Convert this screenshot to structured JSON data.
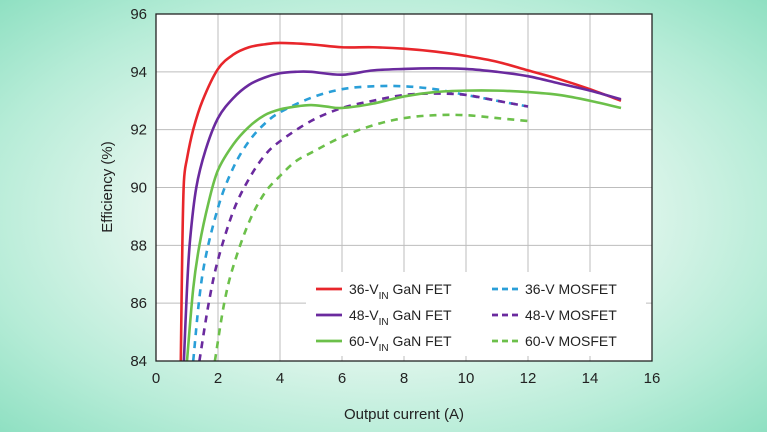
{
  "chart_data": {
    "type": "line",
    "xlabel": "Output current (A)",
    "ylabel": "Efficiency (%)",
    "xlim": [
      0,
      16
    ],
    "ylim": [
      84,
      96
    ],
    "xticks": [
      0,
      2,
      4,
      6,
      8,
      10,
      12,
      14,
      16
    ],
    "yticks": [
      84,
      86,
      88,
      90,
      92,
      94,
      96
    ],
    "grid": true,
    "legend_position": "bottom-right",
    "series": [
      {
        "name": "36-V IN GaN FET",
        "legend_main": "36-V",
        "legend_sub": "IN",
        "legend_rest": " GaN FET",
        "color": "#e8262b",
        "dash": "solid",
        "x": [
          0.8,
          0.85,
          0.9,
          1.0,
          1.2,
          1.5,
          2.0,
          2.5,
          3.0,
          3.5,
          4.0,
          5.0,
          6.0,
          7.0,
          8.0,
          9.0,
          10.0,
          11.0,
          12.0,
          13.0,
          14.0,
          15.0
        ],
        "y": [
          84.0,
          88.0,
          90.2,
          91.0,
          92.0,
          93.0,
          94.1,
          94.6,
          94.85,
          94.95,
          95.0,
          94.95,
          94.85,
          94.85,
          94.8,
          94.7,
          94.55,
          94.35,
          94.05,
          93.75,
          93.4,
          93.0
        ]
      },
      {
        "name": "48-V IN GaN FET",
        "legend_main": "48-V",
        "legend_sub": "IN",
        "legend_rest": " GaN FET",
        "color": "#6a2a9e",
        "dash": "solid",
        "x": [
          0.9,
          1.0,
          1.1,
          1.3,
          1.6,
          2.0,
          2.5,
          3.0,
          3.5,
          4.0,
          4.5,
          5.0,
          6.0,
          7.0,
          8.0,
          9.0,
          10.0,
          11.0,
          12.0,
          13.0,
          14.0,
          15.0
        ],
        "y": [
          84.0,
          86.5,
          88.2,
          90.0,
          91.3,
          92.4,
          93.1,
          93.55,
          93.8,
          93.95,
          94.0,
          94.0,
          93.9,
          94.05,
          94.1,
          94.12,
          94.1,
          94.0,
          93.85,
          93.6,
          93.35,
          93.05
        ]
      },
      {
        "name": "60-V IN GaN FET",
        "legend_main": "60-V",
        "legend_sub": "IN",
        "legend_rest": " GaN FET",
        "color": "#6cc04a",
        "dash": "solid",
        "x": [
          1.0,
          1.2,
          1.4,
          1.7,
          2.0,
          2.5,
          3.0,
          3.5,
          4.0,
          4.5,
          5.0,
          5.5,
          6.0,
          7.0,
          8.0,
          9.0,
          10.0,
          11.0,
          12.0,
          13.0,
          14.0,
          15.0
        ],
        "y": [
          84.0,
          86.5,
          88.0,
          89.5,
          90.6,
          91.5,
          92.1,
          92.5,
          92.7,
          92.8,
          92.85,
          92.8,
          92.75,
          92.9,
          93.15,
          93.3,
          93.35,
          93.35,
          93.3,
          93.2,
          93.0,
          92.75
        ]
      },
      {
        "name": "36-V MOSFET",
        "legend_main": "36-V MOSFET",
        "legend_sub": "",
        "legend_rest": "",
        "color": "#2a9fd8",
        "dash": "dashed",
        "x": [
          1.2,
          1.5,
          2.0,
          2.5,
          3.0,
          3.5,
          4.0,
          5.0,
          6.0,
          7.0,
          8.0,
          9.0,
          10.0,
          11.0,
          12.0
        ],
        "y": [
          84.0,
          87.0,
          89.3,
          90.7,
          91.6,
          92.2,
          92.6,
          93.1,
          93.4,
          93.5,
          93.5,
          93.4,
          93.2,
          93.0,
          92.8
        ]
      },
      {
        "name": "48-V MOSFET",
        "legend_main": "48-V MOSFET",
        "legend_sub": "",
        "legend_rest": "",
        "color": "#6a2a9e",
        "dash": "dashed",
        "x": [
          1.4,
          1.7,
          2.0,
          2.5,
          3.0,
          3.5,
          4.0,
          5.0,
          6.0,
          7.0,
          8.0,
          9.0,
          10.0,
          11.0,
          12.0
        ],
        "y": [
          84.0,
          86.0,
          87.5,
          89.2,
          90.3,
          91.1,
          91.6,
          92.3,
          92.75,
          93.0,
          93.2,
          93.25,
          93.2,
          93.0,
          92.8
        ]
      },
      {
        "name": "60-V MOSFET",
        "legend_main": "60-V MOSFET",
        "legend_sub": "",
        "legend_rest": "",
        "color": "#6cc04a",
        "dash": "dashed",
        "x": [
          1.9,
          2.2,
          2.5,
          3.0,
          3.5,
          4.0,
          4.5,
          5.0,
          6.0,
          7.0,
          8.0,
          9.0,
          10.0,
          11.0,
          12.0
        ],
        "y": [
          84.0,
          86.0,
          87.3,
          88.8,
          89.8,
          90.4,
          90.9,
          91.2,
          91.75,
          92.15,
          92.4,
          92.5,
          92.5,
          92.4,
          92.3
        ]
      }
    ]
  }
}
